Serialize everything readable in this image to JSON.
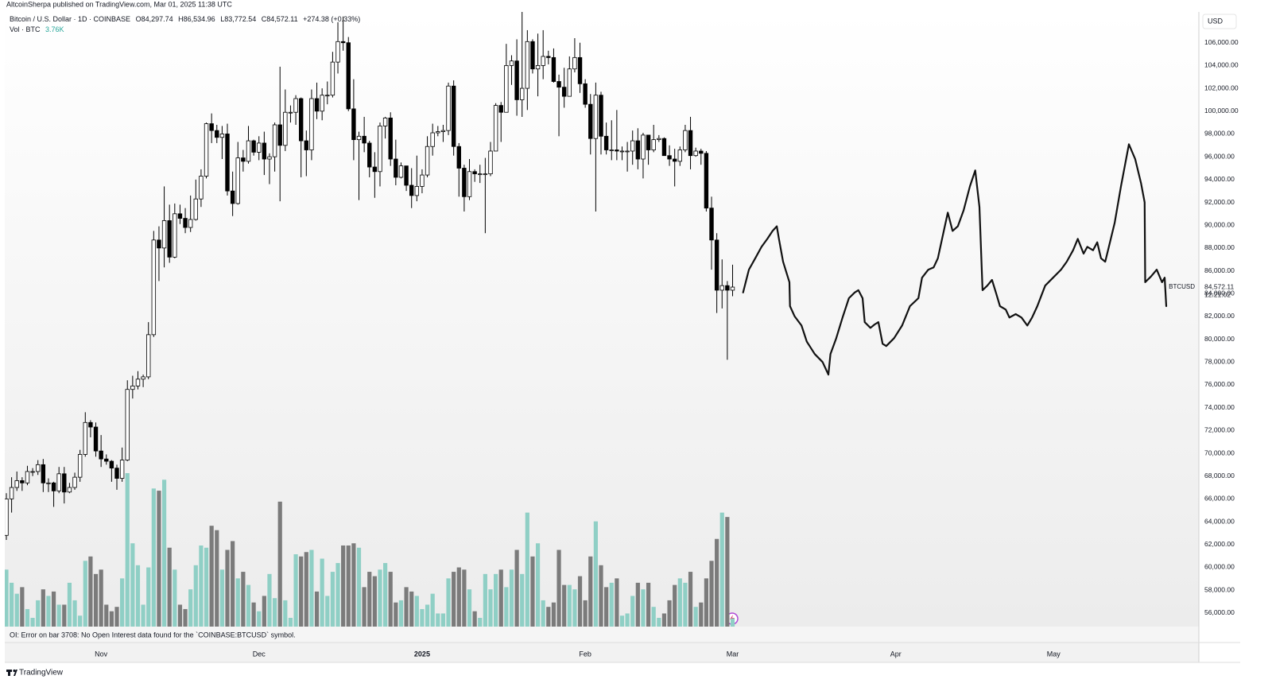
{
  "publisher": "AltcoinSherpa published on TradingView.com, Mar 01, 2025 11:38 UTC",
  "legend": {
    "symbol": "Bitcoin / U.S. Dollar · 1D · COINBASE",
    "open": "O84,297.74",
    "high": "H86,534.96",
    "low": "L83,772.54",
    "close": "C84,572.11",
    "change": "+274.38 (+0.33%)",
    "volume_name": "Vol · BTC",
    "volume_value": "3.76K"
  },
  "currency": "USD",
  "price_tag": {
    "symbol": "BTCUSD",
    "price": "84,572.11",
    "countdown": "12:21:02"
  },
  "error_message": "OI: Error on bar 3708: No Open Interest data found for the `COINBASE:BTCUSD` symbol.",
  "footer": "TradingView",
  "chart_data": {
    "type": "candlestick",
    "x": [
      0,
      1,
      2,
      3,
      4,
      5,
      6,
      7,
      8,
      9,
      10,
      11,
      12,
      13,
      14,
      15,
      16,
      17,
      18,
      19,
      20,
      21,
      22,
      23,
      24,
      25,
      26,
      27,
      28,
      29,
      30,
      31,
      32,
      33,
      34,
      35,
      36,
      37,
      38,
      39,
      40,
      41,
      42,
      43,
      44,
      45,
      46,
      47,
      48,
      49,
      50,
      51,
      52,
      53,
      54,
      55,
      56,
      57,
      58,
      59,
      60,
      61,
      62,
      63,
      64,
      65,
      66,
      67,
      68,
      69,
      70,
      71,
      72,
      73,
      74,
      75,
      76,
      77,
      78,
      79,
      80,
      81,
      82,
      83,
      84,
      85,
      86,
      87,
      88,
      89,
      90,
      91,
      92,
      93,
      94,
      95,
      96,
      97,
      98,
      99,
      100,
      101,
      102,
      103,
      104,
      105,
      106,
      107,
      108,
      109,
      110,
      111,
      112,
      113,
      114,
      115,
      116,
      117,
      118,
      119,
      120,
      121,
      122,
      123,
      124,
      125,
      126,
      127,
      128,
      129,
      130,
      131,
      132,
      133,
      134,
      135,
      136,
      137,
      138
    ],
    "open": [
      62800,
      66000,
      67000,
      67600,
      67400,
      68400,
      68400,
      69000,
      67400,
      67400,
      66700,
      68200,
      66600,
      67000,
      67900,
      69900,
      72700,
      72300,
      70200,
      69500,
      69300,
      68700,
      67800,
      69400,
      75600,
      75900,
      76500,
      76700,
      80400,
      88700,
      88000,
      90400,
      87200,
      91000,
      90600,
      89800,
      90500,
      92300,
      94300,
      98900,
      98300,
      97700,
      98000,
      93000,
      91900,
      95900,
      95600,
      97400,
      96400,
      97200,
      95800,
      96000,
      98800,
      97000,
      99900,
      99900,
      101100,
      97400,
      96600,
      101100,
      100000,
      101400,
      101400,
      104300,
      106100,
      106000,
      100200,
      97500,
      97800,
      97200,
      95100,
      94700,
      98700,
      99400,
      95800,
      94200,
      95200,
      93500,
      92600,
      93400,
      94400,
      96900,
      98100,
      98200,
      98300,
      102200,
      96900,
      95000,
      92500,
      94700,
      94500,
      94500,
      94500,
      96500,
      100500,
      99900,
      104000,
      104400,
      101000,
      102000,
      106100,
      103700,
      104000,
      104800,
      104700,
      102600,
      102100,
      101300,
      103700,
      104700,
      102400,
      100600,
      97600,
      101400,
      97800,
      96600,
      96600,
      96500,
      96500,
      96500,
      97400,
      95800,
      97900,
      96600,
      97500,
      97600,
      96100,
      95800,
      95600,
      96600,
      98300,
      96100,
      96500,
      96300,
      91500,
      88700,
      84300,
      84700,
      84297.74
    ],
    "high": [
      66500,
      67900,
      68400,
      67900,
      68900,
      68700,
      69400,
      69500,
      67800,
      67500,
      68800,
      68800,
      67400,
      68300,
      70300,
      73600,
      72900,
      72700,
      71600,
      69900,
      69400,
      69000,
      70500,
      76400,
      76800,
      77200,
      76900,
      81500,
      89500,
      89900,
      93400,
      91800,
      91900,
      91800,
      91500,
      92600,
      94000,
      94900,
      99000,
      99800,
      98800,
      98700,
      98900,
      94700,
      97300,
      96600,
      98700,
      97500,
      97800,
      98200,
      96300,
      99000,
      103900,
      101900,
      100500,
      101400,
      101200,
      98300,
      101900,
      102500,
      102000,
      102600,
      105200,
      107800,
      108300,
      106500,
      102800,
      98200,
      99500,
      97400,
      96400,
      99000,
      99500,
      99900,
      97500,
      95500,
      95200,
      95000,
      96100,
      94900,
      97800,
      98900,
      98700,
      98800,
      102500,
      102700,
      97200,
      95300,
      95800,
      94900,
      95300,
      95900,
      97300,
      100700,
      100800,
      105900,
      104900,
      106300,
      109300,
      107100,
      106300,
      106800,
      107100,
      105300,
      105500,
      103200,
      103800,
      104800,
      106400,
      106000,
      102800,
      101500,
      102500,
      101700,
      99000,
      99200,
      100100,
      96900,
      97300,
      98300,
      98500,
      98100,
      97900,
      98800,
      97900,
      97700,
      97000,
      96700,
      96900,
      98800,
      99500,
      96800,
      96700,
      96500,
      92500,
      89300,
      87000,
      85100,
      86534.96
    ],
    "low": [
      62400,
      64800,
      66700,
      66700,
      67200,
      68000,
      68100,
      66600,
      66600,
      65300,
      66500,
      65600,
      66500,
      66800,
      67500,
      69700,
      71400,
      69700,
      68800,
      69000,
      67500,
      66800,
      67500,
      69300,
      74800,
      75600,
      75800,
      76500,
      80200,
      85100,
      86300,
      86700,
      87100,
      90100,
      89300,
      89400,
      90400,
      91600,
      94100,
      97200,
      97200,
      95800,
      92600,
      90800,
      91800,
      94700,
      95400,
      96100,
      95700,
      94400,
      93600,
      94700,
      92100,
      96500,
      99000,
      98800,
      94200,
      94300,
      95700,
      99300,
      99200,
      100600,
      101200,
      103300,
      105300,
      100000,
      95700,
      92200,
      96400,
      94200,
      92400,
      93400,
      97600,
      95200,
      93500,
      94100,
      93000,
      91500,
      92100,
      92800,
      94200,
      96100,
      97800,
      97300,
      97900,
      96100,
      92500,
      91200,
      92200,
      93800,
      93700,
      89300,
      94300,
      96500,
      97300,
      99900,
      102300,
      99600,
      99500,
      100100,
      103300,
      101300,
      102800,
      104100,
      102500,
      97800,
      100300,
      101300,
      103400,
      101600,
      100300,
      96200,
      91200,
      96200,
      96200,
      95700,
      95700,
      95700,
      94700,
      95300,
      94900,
      94100,
      95300,
      96400,
      97300,
      96100,
      95200,
      93400,
      95200,
      96400,
      94900,
      96000,
      95300,
      91200,
      86100,
      82300,
      82700,
      78200,
      83772.54
    ],
    "close": [
      66000,
      67000,
      67600,
      67400,
      68400,
      68400,
      69000,
      67400,
      67400,
      66700,
      68200,
      66600,
      67000,
      67900,
      69900,
      72700,
      72300,
      70200,
      69500,
      69300,
      68700,
      67800,
      69400,
      75600,
      75900,
      76500,
      76700,
      80400,
      88700,
      88000,
      90400,
      87200,
      91000,
      90600,
      89800,
      90500,
      92300,
      94300,
      98900,
      98300,
      97700,
      98000,
      93000,
      91900,
      95900,
      95600,
      97400,
      96400,
      97200,
      95800,
      96000,
      98800,
      97000,
      99900,
      99900,
      101100,
      97400,
      96600,
      101100,
      100000,
      101400,
      101400,
      104300,
      106100,
      106000,
      100200,
      97500,
      97800,
      97200,
      95100,
      94700,
      98700,
      99400,
      95800,
      94200,
      95200,
      93500,
      92600,
      93400,
      94400,
      96900,
      98100,
      98200,
      98300,
      102200,
      96900,
      95000,
      92500,
      94700,
      94500,
      94500,
      94500,
      96500,
      100500,
      99900,
      104000,
      104400,
      101000,
      102000,
      106100,
      103700,
      104000,
      104800,
      104700,
      102600,
      102100,
      101300,
      103700,
      104700,
      102400,
      100600,
      97600,
      101400,
      97800,
      96600,
      96600,
      96500,
      96500,
      96500,
      97400,
      95800,
      97900,
      96600,
      97500,
      97600,
      96100,
      95800,
      95600,
      96600,
      98300,
      96100,
      96500,
      96300,
      91500,
      88700,
      84300,
      84700,
      84300,
      84572.11
    ],
    "volume": [
      26000,
      20000,
      15000,
      18000,
      8000,
      4000,
      12000,
      17000,
      14000,
      16000,
      10000,
      10000,
      20000,
      12000,
      5000,
      30000,
      32000,
      24000,
      26000,
      10000,
      7000,
      9000,
      22000,
      70000,
      38000,
      28000,
      10000,
      27000,
      63000,
      62000,
      67000,
      36000,
      26000,
      10000,
      8000,
      17000,
      28000,
      37000,
      36000,
      46000,
      44000,
      26000,
      35000,
      39000,
      22000,
      25000,
      19000,
      11000,
      7000,
      14000,
      24000,
      13000,
      57000,
      12000,
      4000,
      33000,
      32000,
      34000,
      35000,
      16000,
      31000,
      14000,
      25000,
      29000,
      37000,
      37000,
      38000,
      36000,
      18000,
      25000,
      23000,
      26000,
      29000,
      25000,
      11000,
      12000,
      18000,
      16000,
      14000,
      8000,
      10000,
      15000,
      6000,
      6000,
      22000,
      25000,
      27000,
      26000,
      17000,
      7000,
      4000,
      24000,
      17000,
      24000,
      26000,
      18000,
      26000,
      35000,
      24000,
      52000,
      32000,
      38000,
      12000,
      9000,
      11000,
      35000,
      19000,
      19000,
      17000,
      23000,
      12000,
      32000,
      48000,
      28000,
      18000,
      20000,
      22000,
      5000,
      6000,
      14000,
      20000,
      17000,
      20000,
      9000,
      4000,
      6000,
      12000,
      19000,
      22000,
      20000,
      25000,
      9000,
      11000,
      22000,
      30000,
      40000,
      52000,
      50000,
      3760
    ],
    "projection": {
      "x": [
        140.0,
        141.1,
        142.3,
        143.5,
        144.6,
        145.6,
        146.4,
        146.8,
        147.6,
        148.8,
        148.9,
        149.8,
        151.1,
        152.1,
        153.6,
        155.1,
        156.2,
        156.6,
        157.7,
        158.9,
        160.1,
        161.2,
        161.9,
        162.7,
        163.1,
        164.2,
        165.0,
        165.7,
        166.5,
        167.2,
        168.7,
        170.2,
        171.7,
        173.3,
        174.0,
        175.2,
        176.2,
        177.0,
        177.8,
        178.9,
        179.8,
        180.8,
        181.9,
        183.1,
        184.1,
        184.9,
        185.5,
        186.4,
        187.3,
        188.1,
        188.8,
        189.9,
        190.6,
        191.8,
        192.9,
        194.0,
        194.9,
        195.9,
        197.4,
        198.9,
        200.4,
        201.5,
        202.7,
        203.6,
        204.7,
        205.4,
        206.5,
        207.3,
        208.0,
        208.8,
        209.5,
        210.6,
        211.8,
        213.3,
        214.5,
        215.6,
        216.3,
        216.4,
        217.5,
        218.6,
        219.6,
        220.1,
        220.4
      ],
      "values": [
        84100,
        86100,
        87100,
        88100,
        88800,
        89500,
        89900,
        88800,
        86800,
        85000,
        82900,
        82000,
        81200,
        79800,
        78700,
        78000,
        76900,
        78700,
        80100,
        81900,
        83600,
        84100,
        84300,
        83600,
        81500,
        81000,
        81300,
        81500,
        79600,
        79400,
        80100,
        81200,
        82900,
        83600,
        85400,
        86100,
        86300,
        87100,
        88800,
        91100,
        89500,
        89900,
        91300,
        93400,
        94800,
        91600,
        84300,
        84700,
        85200,
        84000,
        82900,
        82600,
        81900,
        82200,
        81900,
        81200,
        81900,
        82900,
        84700,
        85400,
        86100,
        86800,
        87800,
        88800,
        87500,
        88100,
        87800,
        88500,
        87100,
        86800,
        88100,
        90200,
        93400,
        97100,
        95800,
        93700,
        92000,
        85000,
        85500,
        86100,
        85000,
        85400,
        82900
      ],
      "color": "#111111"
    },
    "up_color": "#ffffff",
    "down_color": "#000000",
    "volume_up_color": "#8fcfc5",
    "volume_down_color": "#7b7b7b",
    "xlim": [
      -0.3,
      226.6
    ],
    "xticks": [
      {
        "value": 18,
        "label": "Nov"
      },
      {
        "value": 48,
        "label": "Dec"
      },
      {
        "value": 79,
        "label": "2025"
      },
      {
        "value": 110,
        "label": "Feb"
      },
      {
        "value": 138,
        "label": "Mar"
      },
      {
        "value": 169,
        "label": "Apr"
      },
      {
        "value": 199,
        "label": "May"
      }
    ],
    "ylim": [
      54800,
      108700
    ],
    "yticks": [
      {
        "value": 56000,
        "label": "56,000.00"
      },
      {
        "value": 58000,
        "label": "58,000.00"
      },
      {
        "value": 60000,
        "label": "60,000.00"
      },
      {
        "value": 62000,
        "label": "62,000.00"
      },
      {
        "value": 64000,
        "label": "64,000.00"
      },
      {
        "value": 66000,
        "label": "66,000.00"
      },
      {
        "value": 68000,
        "label": "68,000.00"
      },
      {
        "value": 70000,
        "label": "70,000.00"
      },
      {
        "value": 72000,
        "label": "72,000.00"
      },
      {
        "value": 74000,
        "label": "74,000.00"
      },
      {
        "value": 76000,
        "label": "76,000.00"
      },
      {
        "value": 78000,
        "label": "78,000.00"
      },
      {
        "value": 80000,
        "label": "80,000.00"
      },
      {
        "value": 82000,
        "label": "82,000.00"
      },
      {
        "value": 84000,
        "label": "84,000.00"
      },
      {
        "value": 86000,
        "label": "86,000.00"
      },
      {
        "value": 88000,
        "label": "88,000.00"
      },
      {
        "value": 90000,
        "label": "90,000.00"
      },
      {
        "value": 92000,
        "label": "92,000.00"
      },
      {
        "value": 94000,
        "label": "94,000.00"
      },
      {
        "value": 96000,
        "label": "96,000.00"
      },
      {
        "value": 98000,
        "label": "98,000.00"
      },
      {
        "value": 100000,
        "label": "100,000.00"
      },
      {
        "value": 102000,
        "label": "102,000.00"
      },
      {
        "value": 104000,
        "label": "104,000.00"
      },
      {
        "value": 106000,
        "label": "106,000.00"
      }
    ],
    "grid": false
  }
}
